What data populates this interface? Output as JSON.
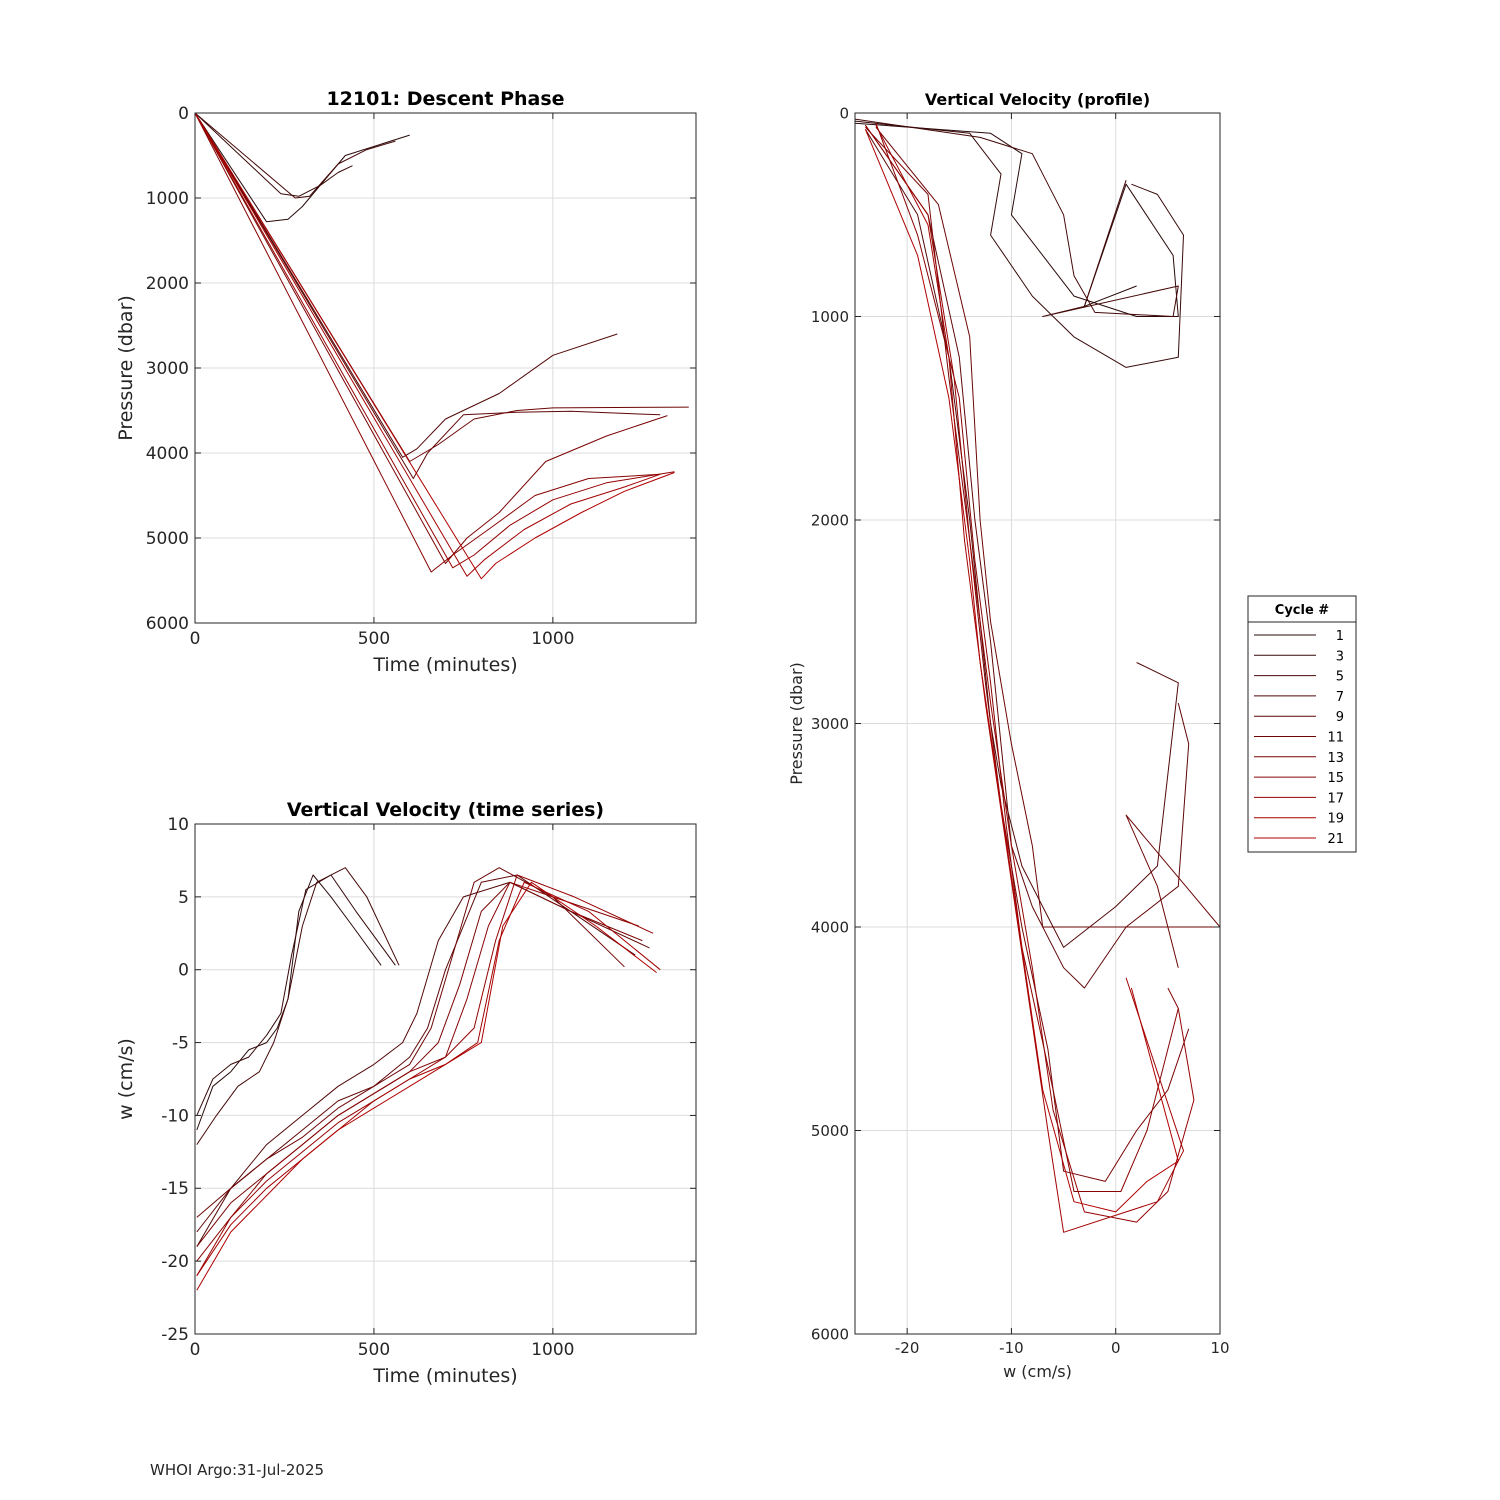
{
  "footer": "WHOI Argo:31-Jul-2025",
  "legend": {
    "title": "Cycle #",
    "entries": [
      "1",
      "3",
      "5",
      "7",
      "9",
      "11",
      "13",
      "15",
      "17",
      "19",
      "21"
    ]
  },
  "colors": {
    "axis": "#262626",
    "grid": "#dcdcdc",
    "dark": "#2a0a0a",
    "red": "#b00000"
  },
  "chart_data": [
    {
      "id": "descent",
      "type": "line",
      "title": "12101: Descent Phase",
      "xlabel": "Time (minutes)",
      "ylabel": "Pressure (dbar)",
      "xlim": [
        0,
        1400
      ],
      "ylim": [
        0,
        6000
      ],
      "y_reversed": true,
      "xticks": [
        0,
        500,
        1000
      ],
      "yticks": [
        0,
        1000,
        2000,
        3000,
        4000,
        5000,
        6000
      ],
      "series": [
        {
          "name": "1",
          "x": [
            0,
            200,
            260,
            300,
            360,
            420,
            600
          ],
          "y": [
            0,
            1280,
            1250,
            1100,
            800,
            500,
            260
          ]
        },
        {
          "name": "3",
          "x": [
            0,
            240,
            290,
            350,
            400,
            440
          ],
          "y": [
            0,
            950,
            980,
            850,
            700,
            620
          ]
        },
        {
          "name": "5",
          "x": [
            0,
            280,
            320,
            400,
            480,
            560
          ],
          "y": [
            0,
            1000,
            980,
            600,
            430,
            330
          ]
        },
        {
          "name": "7",
          "x": [
            0,
            580,
            620,
            700,
            850,
            1000,
            1180
          ],
          "y": [
            0,
            4050,
            3950,
            3600,
            3300,
            2850,
            2600
          ]
        },
        {
          "name": "9",
          "x": [
            0,
            610,
            650,
            750,
            900,
            1050,
            1300
          ],
          "y": [
            0,
            4300,
            4000,
            3550,
            3520,
            3510,
            3550
          ]
        },
        {
          "name": "11",
          "x": [
            0,
            600,
            680,
            780,
            900,
            1000,
            1380
          ],
          "y": [
            0,
            4100,
            3900,
            3600,
            3500,
            3470,
            3460
          ]
        },
        {
          "name": "13",
          "x": [
            0,
            700,
            760,
            850,
            980,
            1150,
            1320
          ],
          "y": [
            0,
            5300,
            5000,
            4700,
            4100,
            3800,
            3560
          ]
        },
        {
          "name": "15",
          "x": [
            0,
            660,
            720,
            820,
            950,
            1100,
            1300
          ],
          "y": [
            0,
            5400,
            5200,
            4900,
            4500,
            4300,
            4250
          ]
        },
        {
          "name": "17",
          "x": [
            0,
            720,
            780,
            880,
            1000,
            1150,
            1340
          ],
          "y": [
            0,
            5350,
            5200,
            4850,
            4550,
            4350,
            4220
          ]
        },
        {
          "name": "19",
          "x": [
            0,
            760,
            810,
            920,
            1050,
            1200,
            1300
          ],
          "y": [
            0,
            5450,
            5250,
            4900,
            4600,
            4400,
            4250
          ]
        },
        {
          "name": "21",
          "x": [
            0,
            800,
            840,
            950,
            1080,
            1200,
            1340
          ],
          "y": [
            0,
            5480,
            5300,
            5000,
            4700,
            4450,
            4230
          ]
        }
      ]
    },
    {
      "id": "wtime",
      "type": "line",
      "title": "Vertical Velocity (time series)",
      "xlabel": "Time (minutes)",
      "ylabel": "w (cm/s)",
      "xlim": [
        0,
        1400
      ],
      "ylim": [
        -25,
        10
      ],
      "xticks": [
        0,
        500,
        1000
      ],
      "yticks": [
        -25,
        -20,
        -15,
        -10,
        -5,
        0,
        5,
        10
      ],
      "series": [
        {
          "name": "1",
          "x": [
            5,
            50,
            100,
            150,
            200,
            230,
            260,
            290,
            330,
            380,
            440,
            520
          ],
          "y": [
            -11,
            -8,
            -7,
            -5.5,
            -5,
            -4,
            -2,
            4,
            6.5,
            5,
            3,
            0.3
          ]
        },
        {
          "name": "3",
          "x": [
            5,
            50,
            100,
            150,
            200,
            240,
            270,
            310,
            380,
            450,
            560
          ],
          "y": [
            -10,
            -7.5,
            -6.5,
            -6,
            -4.5,
            -3,
            1,
            5.5,
            6.5,
            4,
            0.3
          ]
        },
        {
          "name": "5",
          "x": [
            5,
            60,
            120,
            180,
            220,
            260,
            300,
            340,
            420,
            480,
            570
          ],
          "y": [
            -12,
            -10,
            -8,
            -7,
            -5,
            -2,
            3,
            6,
            7,
            5,
            0.3
          ]
        },
        {
          "name": "7",
          "x": [
            5,
            100,
            200,
            300,
            400,
            500,
            580,
            620,
            680,
            750,
            880,
            1050,
            1230
          ],
          "y": [
            -19,
            -15,
            -12,
            -10,
            -8,
            -6.5,
            -5,
            -3,
            2,
            5,
            6,
            4,
            1
          ]
        },
        {
          "name": "9",
          "x": [
            5,
            100,
            200,
            300,
            400,
            500,
            600,
            650,
            700,
            800,
            900,
            1050,
            1270
          ],
          "y": [
            -18,
            -15,
            -13,
            -11,
            -9,
            -8,
            -6,
            -4,
            0,
            6,
            6.5,
            4,
            1.5
          ]
        },
        {
          "name": "11",
          "x": [
            5,
            100,
            200,
            300,
            400,
            500,
            600,
            660,
            720,
            780,
            850,
            1000,
            1200
          ],
          "y": [
            -17,
            -15,
            -13,
            -11.5,
            -9.5,
            -8,
            -6.5,
            -4,
            1,
            6,
            7,
            5,
            0.2
          ]
        },
        {
          "name": "13",
          "x": [
            5,
            100,
            200,
            300,
            400,
            500,
            600,
            680,
            740,
            800,
            880,
            1050,
            1250
          ],
          "y": [
            -19,
            -16,
            -14,
            -12,
            -10,
            -8.5,
            -7,
            -5,
            -1,
            4,
            6,
            4,
            2
          ]
        },
        {
          "name": "15",
          "x": [
            5,
            100,
            200,
            300,
            400,
            500,
            600,
            700,
            760,
            820,
            880,
            1000,
            1240
          ],
          "y": [
            -20,
            -17,
            -14,
            -12,
            -10,
            -8.5,
            -7,
            -6,
            -2,
            3,
            6,
            5,
            3
          ]
        },
        {
          "name": "17",
          "x": [
            5,
            100,
            200,
            300,
            400,
            500,
            600,
            700,
            780,
            840,
            900,
            1060,
            1280
          ],
          "y": [
            -21,
            -17,
            -14.5,
            -12.5,
            -10.5,
            -9,
            -7.5,
            -6,
            -4,
            2,
            6.5,
            5,
            2.5
          ]
        },
        {
          "name": "19",
          "x": [
            5,
            100,
            200,
            300,
            400,
            500,
            600,
            700,
            790,
            850,
            920,
            1100,
            1300
          ],
          "y": [
            -21,
            -17.5,
            -15,
            -13,
            -11,
            -9,
            -7.5,
            -6.5,
            -5,
            2,
            6,
            4,
            0
          ]
        },
        {
          "name": "21",
          "x": [
            5,
            100,
            200,
            300,
            400,
            500,
            600,
            700,
            800,
            860,
            940,
            1120,
            1290
          ],
          "y": [
            -22,
            -18,
            -15.5,
            -13,
            -11,
            -9.5,
            -8,
            -6.5,
            -5,
            3,
            6,
            3,
            -0.2
          ]
        }
      ]
    },
    {
      "id": "wprofile",
      "type": "line",
      "title": "Vertical Velocity (profile)",
      "xlabel": "w (cm/s)",
      "ylabel": "Pressure (dbar)",
      "xlim": [
        -25,
        10
      ],
      "ylim": [
        0,
        6000
      ],
      "y_reversed": true,
      "xticks": [
        -20,
        -10,
        0,
        10
      ],
      "yticks": [
        0,
        1000,
        2000,
        3000,
        4000,
        5000,
        6000
      ],
      "series": [
        {
          "name": "1",
          "w": [
            -25,
            -12,
            -9,
            -10,
            -7,
            -4,
            2,
            6,
            5.5,
            1,
            -3,
            2
          ],
          "p": [
            50,
            100,
            200,
            500,
            700,
            900,
            1000,
            1000,
            700,
            350,
            950,
            850
          ]
        },
        {
          "name": "3",
          "w": [
            -25,
            -14,
            -11,
            -12,
            -8,
            -6,
            -4,
            1,
            6,
            6.5,
            4,
            1.5
          ],
          "p": [
            40,
            100,
            300,
            600,
            900,
            1000,
            1100,
            1250,
            1200,
            600,
            400,
            350
          ]
        },
        {
          "name": "5",
          "w": [
            -25,
            -13,
            -8,
            -5,
            -4,
            -2,
            5.5,
            6,
            -7,
            -3,
            1
          ],
          "p": [
            30,
            120,
            200,
            500,
            800,
            980,
            1000,
            850,
            1000,
            950,
            330
          ]
        },
        {
          "name": "7",
          "w": [
            -24,
            -19,
            -16,
            -14,
            -13,
            -12,
            -11,
            -9,
            -6,
            -5,
            0,
            4,
            6,
            2
          ],
          "p": [
            80,
            500,
            1200,
            2000,
            2500,
            3000,
            3300,
            3700,
            4000,
            4100,
            3900,
            3700,
            2800,
            2700
          ]
        },
        {
          "name": "9",
          "w": [
            -24,
            -18,
            -15,
            -13.5,
            -12,
            -11,
            -10,
            -8,
            -5,
            -3,
            1,
            6,
            7,
            6
          ],
          "p": [
            60,
            500,
            1200,
            2000,
            2600,
            3100,
            3600,
            3900,
            4200,
            4300,
            4000,
            3800,
            3100,
            2900
          ]
        },
        {
          "name": "11",
          "w": [
            -23,
            -17,
            -14,
            -13,
            -12,
            -10,
            -8,
            -7,
            -5,
            10,
            1,
            4,
            6
          ],
          "p": [
            70,
            450,
            1100,
            2000,
            2500,
            3100,
            3600,
            4000,
            4000,
            4000,
            3450,
            3800,
            4200
          ]
        },
        {
          "name": "13",
          "w": [
            -24,
            -18,
            -16,
            -14,
            -12.5,
            -11,
            -9,
            -6.5,
            -5,
            -1,
            2,
            5,
            7
          ],
          "p": [
            70,
            400,
            1300,
            2100,
            2800,
            3400,
            4000,
            4600,
            5200,
            5250,
            5000,
            4800,
            4500
          ]
        },
        {
          "name": "15",
          "w": [
            -23,
            -19,
            -15,
            -13.5,
            -12,
            -10.5,
            -9,
            -6,
            -4,
            0.5,
            3,
            6,
            5
          ],
          "p": [
            50,
            600,
            1400,
            2200,
            2800,
            3500,
            4100,
            4800,
            5300,
            5300,
            5000,
            4400,
            4300
          ]
        },
        {
          "name": "17",
          "w": [
            -24,
            -18,
            -15.5,
            -14,
            -12,
            -10,
            -8,
            -6,
            -3,
            2,
            5,
            7.5,
            6
          ],
          "p": [
            60,
            500,
            1300,
            2100,
            2900,
            3600,
            4200,
            4900,
            5400,
            5450,
            5300,
            4850,
            4400
          ]
        },
        {
          "name": "19",
          "w": [
            -23,
            -18,
            -16,
            -14.5,
            -12.5,
            -10.5,
            -8.5,
            -6.5,
            -5,
            1,
            4,
            6.5,
            1
          ],
          "p": [
            60,
            550,
            1200,
            2100,
            2900,
            3600,
            4300,
            5000,
            5500,
            5400,
            5350,
            5100,
            4250
          ]
        },
        {
          "name": "21",
          "w": [
            -24,
            -19,
            -16,
            -14,
            -13,
            -11,
            -9,
            -7,
            -4,
            0,
            3,
            6,
            1.5
          ],
          "p": [
            80,
            700,
            1400,
            2200,
            2700,
            3400,
            4100,
            4800,
            5350,
            5400,
            5250,
            5150,
            4300
          ]
        }
      ]
    }
  ]
}
